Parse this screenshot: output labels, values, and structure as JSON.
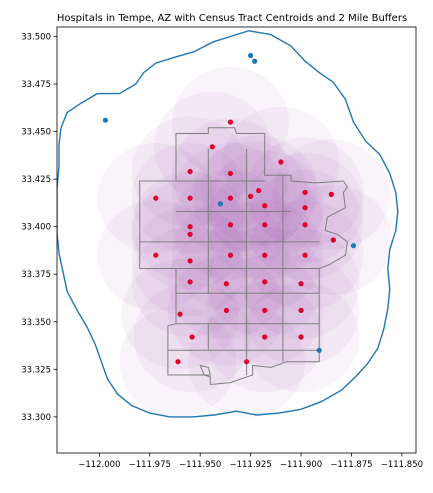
{
  "chart_data": {
    "type": "scatter",
    "title": "Hospitals in Tempe, AZ with Census Tract Centroids and 2 Mile Buffers",
    "xlabel": "",
    "ylabel": "",
    "xlim": [
      -112.021,
      -111.843
    ],
    "ylim": [
      33.281,
      33.505
    ],
    "grid": false,
    "x_ticks": [
      "-112.000",
      "-111.975",
      "-111.950",
      "-111.925",
      "-111.900",
      "-111.875",
      "-111.850"
    ],
    "x_tick_values": [
      -112.0,
      -111.975,
      -111.95,
      -111.925,
      -111.9,
      -111.875,
      -111.85
    ],
    "y_ticks": [
      "33.300",
      "33.325",
      "33.350",
      "33.375",
      "33.400",
      "33.425",
      "33.450",
      "33.475",
      "33.500"
    ],
    "y_tick_values": [
      33.3,
      33.325,
      33.35,
      33.375,
      33.4,
      33.425,
      33.45,
      33.475,
      33.5
    ],
    "colors": {
      "hospital": "#1f77b4",
      "centroid": "#e0002a",
      "outline": "#1f77b4",
      "tracts": "#7f7f7f",
      "buffer_fill": "#a04ab0"
    },
    "series": [],
    "hospitals": [
      [
        -111.997,
        33.456
      ],
      [
        -111.925,
        33.49
      ],
      [
        -111.923,
        33.487
      ],
      [
        -111.94,
        33.412
      ],
      [
        -111.874,
        33.39
      ],
      [
        -111.891,
        33.335
      ]
    ],
    "centroids": [
      [
        -111.935,
        33.455
      ],
      [
        -111.944,
        33.442
      ],
      [
        -111.91,
        33.434
      ],
      [
        -111.955,
        33.429
      ],
      [
        -111.935,
        33.428
      ],
      [
        -111.921,
        33.419
      ],
      [
        -111.925,
        33.416
      ],
      [
        -111.898,
        33.418
      ],
      [
        -111.885,
        33.417
      ],
      [
        -111.972,
        33.415
      ],
      [
        -111.955,
        33.415
      ],
      [
        -111.935,
        33.415
      ],
      [
        -111.918,
        33.411
      ],
      [
        -111.898,
        33.41
      ],
      [
        -111.955,
        33.4
      ],
      [
        -111.935,
        33.401
      ],
      [
        -111.918,
        33.401
      ],
      [
        -111.898,
        33.401
      ],
      [
        -111.955,
        33.396
      ],
      [
        -111.884,
        33.393
      ],
      [
        -111.972,
        33.385
      ],
      [
        -111.935,
        33.385
      ],
      [
        -111.918,
        33.385
      ],
      [
        -111.898,
        33.385
      ],
      [
        -111.955,
        33.382
      ],
      [
        -111.918,
        33.371
      ],
      [
        -111.955,
        33.371
      ],
      [
        -111.937,
        33.37
      ],
      [
        -111.9,
        33.37
      ],
      [
        -111.937,
        33.356
      ],
      [
        -111.918,
        33.356
      ],
      [
        -111.9,
        33.356
      ],
      [
        -111.96,
        33.354
      ],
      [
        -111.954,
        33.342
      ],
      [
        -111.918,
        33.342
      ],
      [
        -111.9,
        33.342
      ],
      [
        -111.961,
        33.329
      ],
      [
        -111.927,
        33.329
      ]
    ],
    "buffer_radius_deg": 0.029,
    "outline": [
      [
        -112.019,
        33.452
      ],
      [
        -112.016,
        33.46
      ],
      [
        -112.009,
        33.465
      ],
      [
        -112.001,
        33.47
      ],
      [
        -111.99,
        33.47
      ],
      [
        -111.982,
        33.475
      ],
      [
        -111.978,
        33.481
      ],
      [
        -111.972,
        33.486
      ],
      [
        -111.963,
        33.489
      ],
      [
        -111.953,
        33.492
      ],
      [
        -111.944,
        33.497
      ],
      [
        -111.935,
        33.5
      ],
      [
        -111.926,
        33.503
      ],
      [
        -111.915,
        33.501
      ],
      [
        -111.905,
        33.495
      ],
      [
        -111.898,
        33.487
      ],
      [
        -111.891,
        33.481
      ],
      [
        -111.884,
        33.476
      ],
      [
        -111.878,
        33.467
      ],
      [
        -111.874,
        33.455
      ],
      [
        -111.868,
        33.445
      ],
      [
        -111.861,
        33.438
      ],
      [
        -111.856,
        33.428
      ],
      [
        -111.853,
        33.418
      ],
      [
        -111.852,
        33.408
      ],
      [
        -111.853,
        33.398
      ],
      [
        -111.856,
        33.388
      ],
      [
        -111.857,
        33.378
      ],
      [
        -111.856,
        33.367
      ],
      [
        -111.857,
        33.357
      ],
      [
        -111.859,
        33.346
      ],
      [
        -111.862,
        33.336
      ],
      [
        -111.867,
        33.328
      ],
      [
        -111.873,
        33.321
      ],
      [
        -111.88,
        33.314
      ],
      [
        -111.89,
        33.308
      ],
      [
        -111.9,
        33.304
      ],
      [
        -111.911,
        33.302
      ],
      [
        -111.922,
        33.301
      ],
      [
        -111.932,
        33.303
      ],
      [
        -111.943,
        33.301
      ],
      [
        -111.954,
        33.3
      ],
      [
        -111.965,
        33.3
      ],
      [
        -111.975,
        33.302
      ],
      [
        -111.984,
        33.306
      ],
      [
        -111.991,
        33.312
      ],
      [
        -111.996,
        33.32
      ],
      [
        -111.999,
        33.329
      ],
      [
        -112.002,
        33.338
      ],
      [
        -112.006,
        33.347
      ],
      [
        -112.011,
        33.356
      ],
      [
        -112.016,
        33.366
      ],
      [
        -112.018,
        33.376
      ],
      [
        -112.02,
        33.386
      ],
      [
        -112.021,
        33.397
      ],
      [
        -112.021,
        33.408
      ],
      [
        -112.021,
        33.42
      ],
      [
        -112.02,
        33.432
      ],
      [
        -112.02,
        33.443
      ],
      [
        -112.019,
        33.452
      ]
    ],
    "tracts_outline": [
      [
        -111.946,
        33.449
      ],
      [
        -111.946,
        33.452
      ],
      [
        -111.933,
        33.452
      ],
      [
        -111.932,
        33.449
      ],
      [
        -111.918,
        33.449
      ],
      [
        -111.918,
        33.427
      ],
      [
        -111.905,
        33.427
      ],
      [
        -111.905,
        33.424
      ],
      [
        -111.893,
        33.423
      ],
      [
        -111.879,
        33.424
      ],
      [
        -111.877,
        33.421
      ],
      [
        -111.879,
        33.418
      ],
      [
        -111.878,
        33.41
      ],
      [
        -111.887,
        33.405
      ],
      [
        -111.888,
        33.398
      ],
      [
        -111.882,
        33.396
      ],
      [
        -111.877,
        33.392
      ],
      [
        -111.878,
        33.385
      ],
      [
        -111.886,
        33.38
      ],
      [
        -111.891,
        33.378
      ],
      [
        -111.891,
        33.329
      ],
      [
        -111.907,
        33.329
      ],
      [
        -111.915,
        33.326
      ],
      [
        -111.924,
        33.327
      ],
      [
        -111.924,
        33.322
      ],
      [
        -111.935,
        33.318
      ],
      [
        -111.945,
        33.317
      ],
      [
        -111.945,
        33.321
      ],
      [
        -111.948,
        33.322
      ],
      [
        -111.95,
        33.327
      ],
      [
        -111.946,
        33.326
      ],
      [
        -111.945,
        33.322
      ],
      [
        -111.966,
        33.322
      ],
      [
        -111.966,
        33.335
      ],
      [
        -111.966,
        33.348
      ],
      [
        -111.962,
        33.349
      ],
      [
        -111.962,
        33.359
      ],
      [
        -111.962,
        33.365
      ],
      [
        -111.962,
        33.368
      ],
      [
        -111.962,
        33.378
      ],
      [
        -111.962,
        33.378
      ],
      [
        -111.98,
        33.378
      ],
      [
        -111.98,
        33.392
      ],
      [
        -111.98,
        33.424
      ],
      [
        -111.962,
        33.424
      ],
      [
        -111.962,
        33.449
      ],
      [
        -111.946,
        33.449
      ]
    ],
    "tracts_lines": [
      [
        [
          -111.962,
          33.424
        ],
        [
          -111.918,
          33.424
        ]
      ],
      [
        [
          -111.962,
          33.408
        ],
        [
          -111.905,
          33.408
        ]
      ],
      [
        [
          -111.98,
          33.392
        ],
        [
          -111.891,
          33.392
        ]
      ],
      [
        [
          -111.962,
          33.378
        ],
        [
          -111.891,
          33.378
        ]
      ],
      [
        [
          -111.962,
          33.365
        ],
        [
          -111.891,
          33.365
        ]
      ],
      [
        [
          -111.962,
          33.349
        ],
        [
          -111.891,
          33.349
        ]
      ],
      [
        [
          -111.966,
          33.335
        ],
        [
          -111.891,
          33.335
        ]
      ],
      [
        [
          -111.946,
          33.441
        ],
        [
          -111.946,
          33.365
        ]
      ],
      [
        [
          -111.927,
          33.441
        ],
        [
          -111.927,
          33.322
        ]
      ],
      [
        [
          -111.909,
          33.427
        ],
        [
          -111.909,
          33.329
        ]
      ],
      [
        [
          -111.946,
          33.349
        ],
        [
          -111.946,
          33.335
        ]
      ]
    ]
  }
}
